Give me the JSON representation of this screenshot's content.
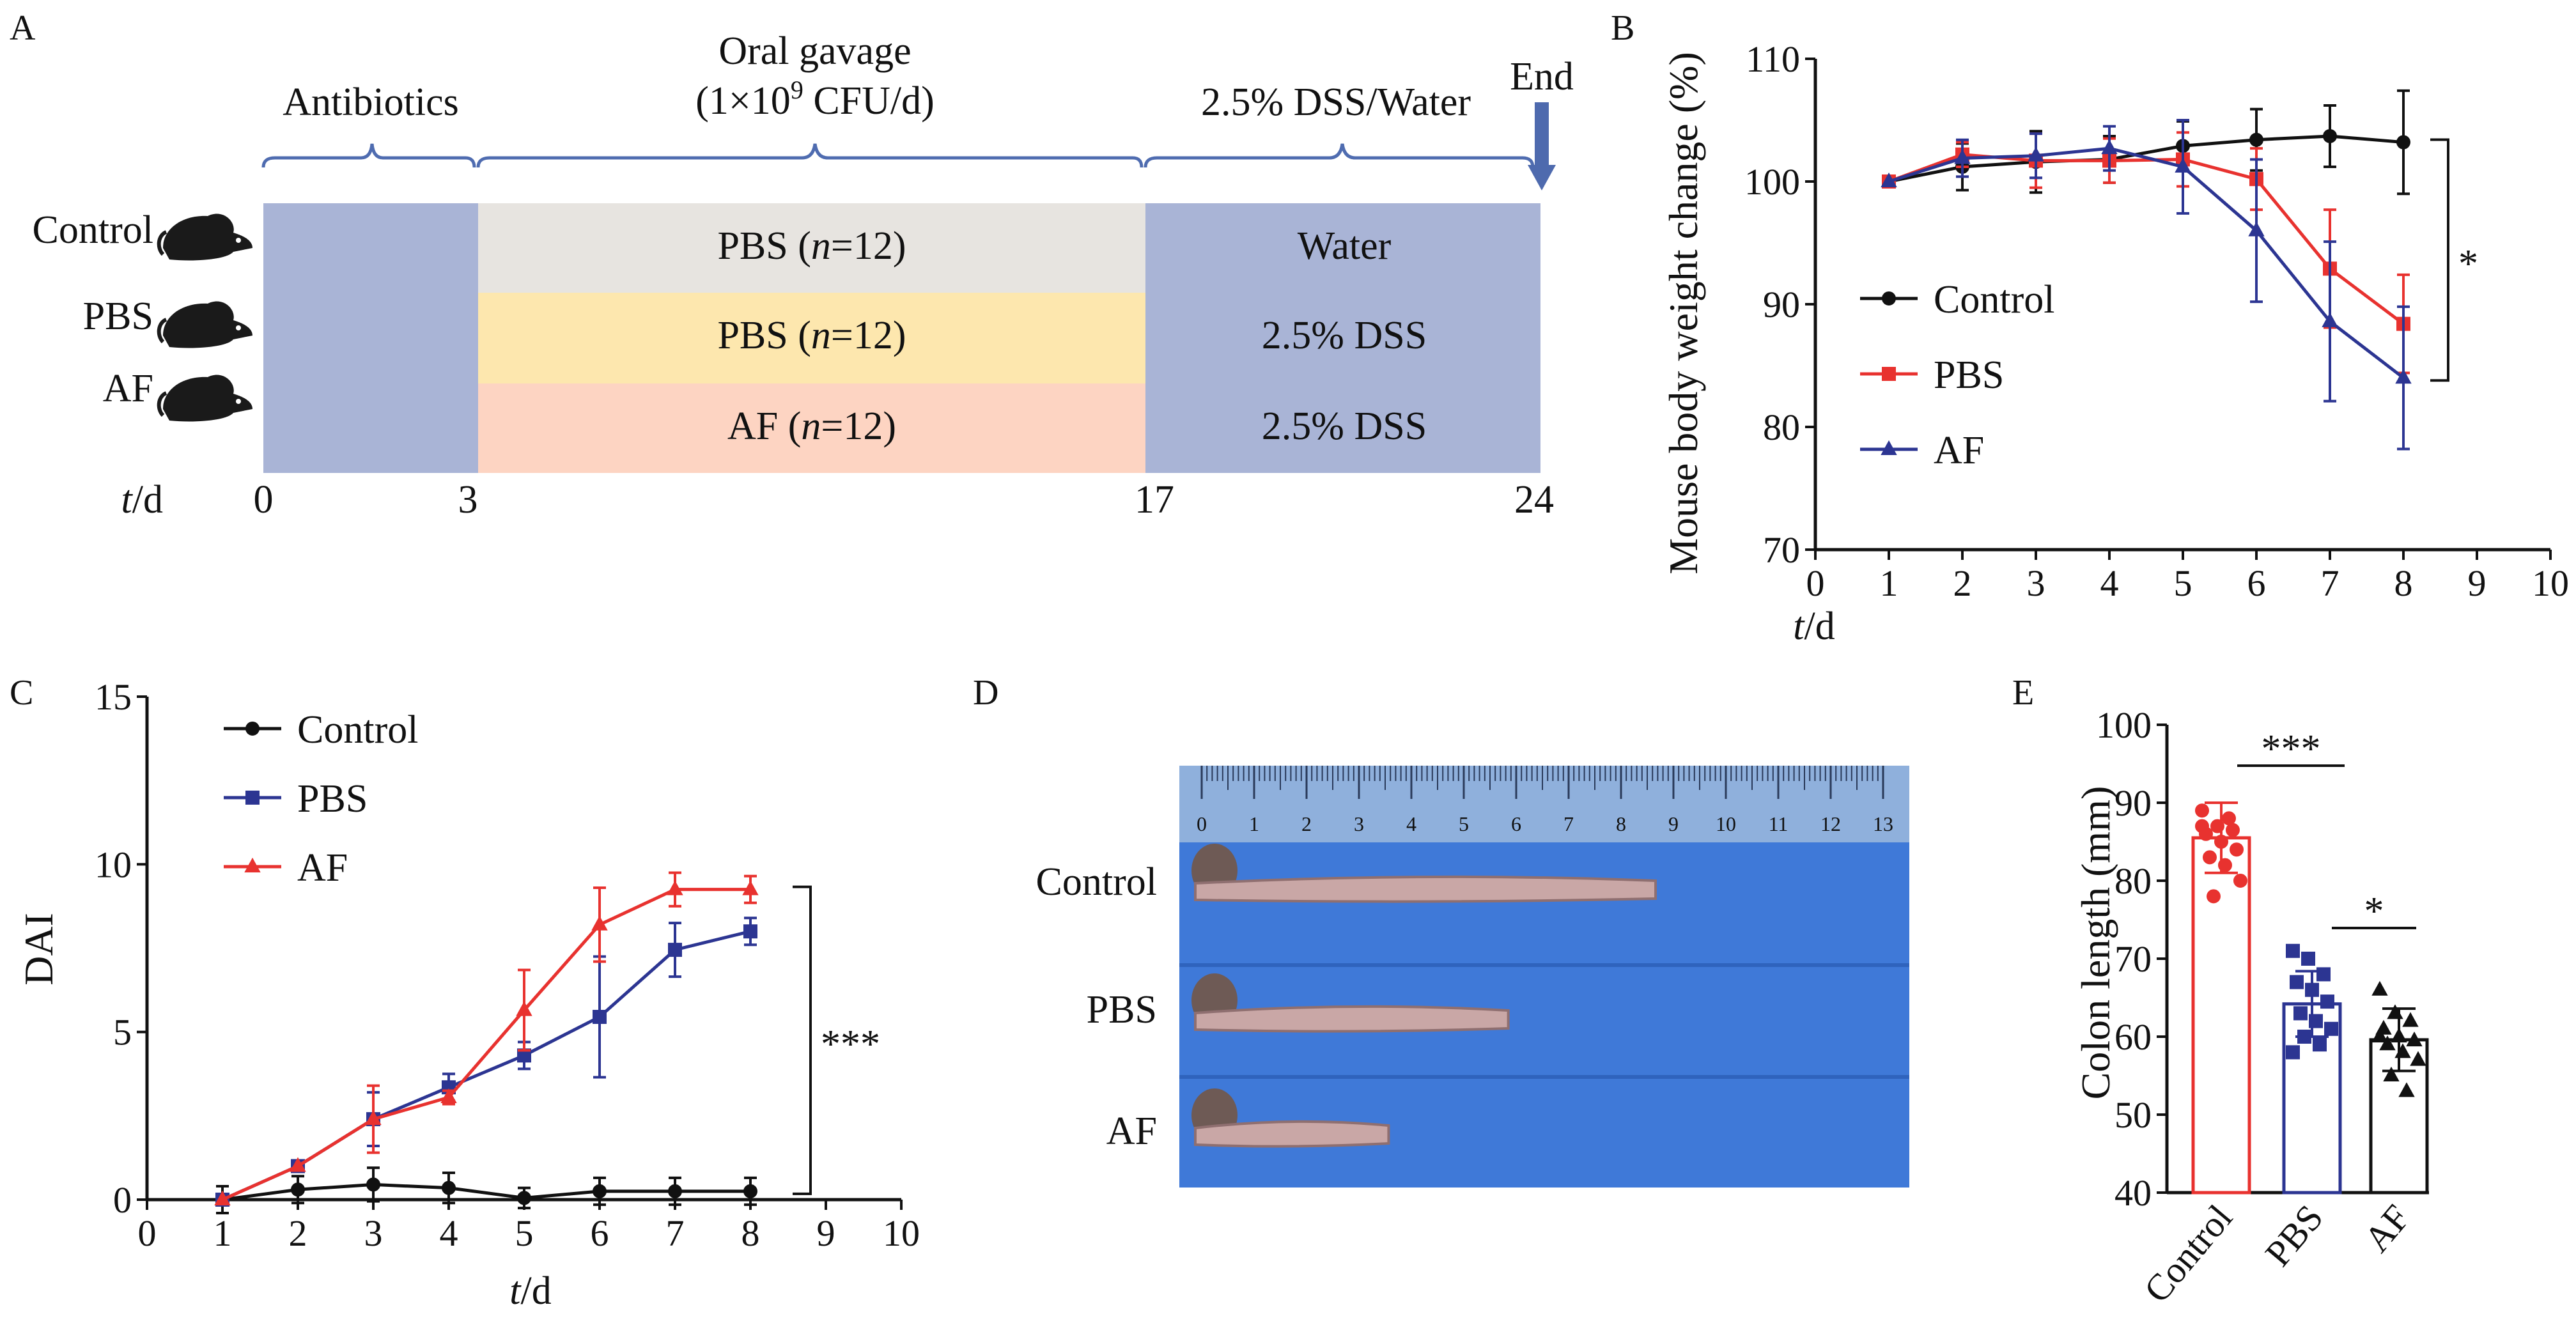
{
  "panel_labels": {
    "a": "A",
    "b": "B",
    "c": "C",
    "d": "D",
    "e": "E"
  },
  "panel_a": {
    "stages": [
      {
        "label": "Antibiotics"
      },
      {
        "label_line1": "Oral gavage",
        "label_line2_pre": "(1×10",
        "label_line2_sup": "9",
        "label_line2_post": " CFU/d)"
      },
      {
        "label": "2.5% DSS/Water"
      }
    ],
    "end_label": "End",
    "groups": [
      {
        "name": "Control",
        "treatment": {
          "pre": "PBS (",
          "n": "n",
          "post": "=12)"
        },
        "drink": "Water"
      },
      {
        "name": "PBS",
        "treatment": {
          "pre": "PBS (",
          "n": "n",
          "post": "=12)"
        },
        "drink": "2.5% DSS"
      },
      {
        "name": "AF",
        "treatment": {
          "pre": "AF (",
          "n": "n",
          "post": "=12)"
        },
        "drink": "2.5% DSS"
      }
    ],
    "timeline": {
      "axis_var": "t",
      "axis_unit": "/d",
      "ticks": [
        "0",
        "3",
        "17",
        "24"
      ]
    },
    "colors": {
      "antibiotics": "#a9b4d6",
      "control_gavage": "#e7e4e0",
      "pbs_gavage": "#fde7ae",
      "af_gavage": "#fdd4c2",
      "dss": "#a9b4d6",
      "bracket": "#4f6cb0",
      "arrow": "#4e6aae",
      "mouse": "#1a1a1a"
    },
    "icon": "mouse-icon"
  },
  "chart_data": [
    {
      "panel": "B",
      "type": "line",
      "xlabel_var": "t",
      "xlabel_unit": "/d",
      "ylabel": "Mouse body weight change (%)",
      "xlim": [
        0,
        10
      ],
      "ylim": [
        70,
        110
      ],
      "xticks": [
        "0",
        "1",
        "2",
        "3",
        "4",
        "5",
        "6",
        "7",
        "8",
        "9",
        "10"
      ],
      "yticks": [
        "70",
        "80",
        "90",
        "100",
        "110"
      ],
      "x": [
        1,
        2,
        3,
        4,
        5,
        6,
        7,
        8
      ],
      "series": [
        {
          "name": "Control",
          "color": "#111111",
          "marker": "circle",
          "values": [
            100,
            101.2,
            101.6,
            101.8,
            102.9,
            103.4,
            103.7,
            103.2
          ],
          "errors": [
            0,
            1.9,
            2.5,
            1.9,
            2,
            2.5,
            2.5,
            4.2
          ]
        },
        {
          "name": "PBS",
          "color": "#e8322f",
          "marker": "square",
          "values": [
            100,
            102.2,
            101.7,
            101.7,
            101.8,
            100.2,
            92.9,
            88.4
          ],
          "errors": [
            0,
            1.0,
            2.2,
            1.8,
            2.2,
            2.5,
            4.8,
            4.0
          ]
        },
        {
          "name": "AF",
          "color": "#2c3592",
          "marker": "triangle",
          "values": [
            100,
            101.9,
            102.1,
            102.7,
            101.2,
            96.0,
            88.6,
            84.0
          ],
          "errors": [
            0,
            1.5,
            1.8,
            1.8,
            3.8,
            5.8,
            6.5,
            5.8
          ]
        }
      ],
      "legend_position": "left",
      "significance": "*"
    },
    {
      "panel": "C",
      "type": "line",
      "xlabel_var": "t",
      "xlabel_unit": "/d",
      "ylabel": "DAI",
      "xlim": [
        0,
        10
      ],
      "ylim": [
        0,
        15
      ],
      "xticks": [
        "0",
        "1",
        "2",
        "3",
        "4",
        "5",
        "6",
        "7",
        "8",
        "9",
        "10"
      ],
      "yticks": [
        "0",
        "5",
        "10",
        "15"
      ],
      "x": [
        1,
        2,
        3,
        4,
        5,
        6,
        7,
        8
      ],
      "series": [
        {
          "name": "Control",
          "color": "#111111",
          "marker": "circle",
          "values": [
            0,
            0.3,
            0.45,
            0.35,
            0.05,
            0.25,
            0.25,
            0.25
          ],
          "errors": [
            0.4,
            0.4,
            0.5,
            0.45,
            0.3,
            0.4,
            0.4,
            0.4
          ]
        },
        {
          "name": "PBS",
          "color": "#2c3592",
          "marker": "square",
          "values": [
            0,
            1.0,
            2.4,
            3.35,
            4.3,
            5.45,
            7.45,
            8.0
          ],
          "errors": [
            0,
            0,
            0.8,
            0.4,
            0.4,
            1.8,
            0.8,
            0.4
          ]
        },
        {
          "name": "AF",
          "color": "#e8322f",
          "marker": "triangle",
          "values": [
            0,
            1.0,
            2.4,
            3.05,
            5.65,
            8.2,
            9.25,
            9.25
          ],
          "errors": [
            0,
            0,
            1.0,
            0.2,
            1.2,
            1.1,
            0.5,
            0.4
          ]
        }
      ],
      "legend_position": "top-left",
      "significance": "***"
    },
    {
      "panel": "E",
      "type": "bar",
      "ylabel": "Colon length (mm)",
      "ylim": [
        40,
        100
      ],
      "yticks": [
        "40",
        "50",
        "60",
        "70",
        "80",
        "90",
        "100"
      ],
      "categories": [
        "Control",
        "PBS",
        "AF"
      ],
      "values": [
        85.5,
        64.2,
        59.6
      ],
      "errors": [
        4.5,
        4.2,
        4.0
      ],
      "colors": [
        "#e8322f",
        "#2c3592",
        "#111111"
      ],
      "markers": [
        "circle",
        "square",
        "triangle"
      ],
      "points": [
        [
          89,
          87,
          86.5,
          86,
          85,
          84,
          83,
          82,
          80,
          78,
          88,
          87
        ],
        [
          71,
          70,
          68,
          67,
          66,
          64.5,
          63,
          62,
          61,
          60,
          59,
          58
        ],
        [
          66,
          63,
          62,
          61,
          60,
          59.5,
          59,
          58,
          57,
          55,
          53,
          60
        ]
      ],
      "significance": [
        {
          "between": [
            "Control",
            "PBS"
          ],
          "label": "***"
        },
        {
          "between": [
            "PBS",
            "AF"
          ],
          "label": "*"
        }
      ]
    }
  ],
  "panel_d": {
    "row_labels": [
      "Control",
      "PBS",
      "AF"
    ],
    "ruler_ticks": [
      "0",
      "1",
      "2",
      "3",
      "4",
      "5",
      "6",
      "7",
      "8",
      "9",
      "10",
      "11",
      "12",
      "13"
    ],
    "tissue_extent": [
      1.0,
      0.68,
      0.42
    ],
    "colors": {
      "background": "#3f79d8",
      "ruler": "#8fb0dc",
      "tissue": "#c9a7a6"
    }
  }
}
